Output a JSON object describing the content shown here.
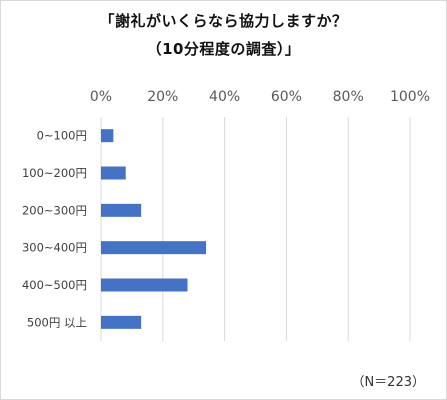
{
  "chart_data": {
    "type": "bar",
    "orientation": "horizontal",
    "title_lines": [
      "「謝礼がいくらなら協力しますか？",
      "（10分程度の調査）」"
    ],
    "categories": [
      "0~100円",
      "100~200円",
      "200~300円",
      "300~400円",
      "400~500円",
      "500円 以上"
    ],
    "values": [
      4,
      8,
      13,
      34,
      28,
      13
    ],
    "x_ticks": [
      "0%",
      "20%",
      "40%",
      "60%",
      "80%",
      "100%"
    ],
    "xlim": [
      0,
      100
    ],
    "grid": true,
    "bar_color": "#4472c4",
    "note": "（N＝223）"
  }
}
